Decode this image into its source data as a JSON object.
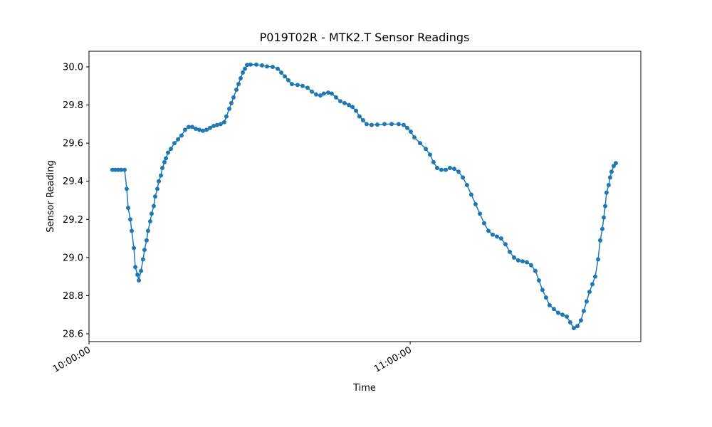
{
  "chart_data": {
    "type": "line",
    "title": "P019T02R - MTK2.T Sensor Readings",
    "xlabel": "Time",
    "ylabel": "Sensor Reading",
    "color": "#1f77b4",
    "x": [
      "10:04:23",
      "10:04:55",
      "10:05:27",
      "10:05:59",
      "10:06:39",
      "10:07:03",
      "10:07:19",
      "10:07:43",
      "10:07:59",
      "10:08:23",
      "10:08:39",
      "10:09:03",
      "10:09:19",
      "10:09:43",
      "10:10:06",
      "10:10:22",
      "10:10:46",
      "10:11:02",
      "10:11:26",
      "10:11:42",
      "10:12:06",
      "10:12:22",
      "10:12:46",
      "10:13:02",
      "10:13:26",
      "10:13:42",
      "10:14:06",
      "10:14:22",
      "10:14:46",
      "10:15:18",
      "10:15:58",
      "10:16:38",
      "10:17:17",
      "10:17:57",
      "10:18:37",
      "10:19:17",
      "10:19:57",
      "10:20:37",
      "10:21:17",
      "10:21:57",
      "10:22:37",
      "10:23:17",
      "10:23:56",
      "10:24:36",
      "10:25:16",
      "10:25:40",
      "10:26:12",
      "10:26:36",
      "10:27:00",
      "10:27:32",
      "10:27:56",
      "10:28:20",
      "10:28:44",
      "10:29:08",
      "10:29:32",
      "10:30:11",
      "10:31:15",
      "10:32:19",
      "10:33:15",
      "10:34:19",
      "10:35:15",
      "10:35:55",
      "10:36:35",
      "10:37:14",
      "10:37:54",
      "10:38:58",
      "10:39:54",
      "10:40:50",
      "10:41:38",
      "10:42:26",
      "10:43:14",
      "10:43:53",
      "10:44:41",
      "10:45:21",
      "10:46:09",
      "10:46:57",
      "10:47:45",
      "10:48:33",
      "10:49:13",
      "10:49:53",
      "10:50:32",
      "10:51:12",
      "10:51:52",
      "10:52:48",
      "10:53:52",
      "10:55:12",
      "10:56:32",
      "10:57:51",
      "10:58:47",
      "10:59:27",
      "11:00:07",
      "11:00:47",
      "11:01:51",
      "11:02:55",
      "11:03:42",
      "11:04:22",
      "11:05:02",
      "11:05:50",
      "11:06:38",
      "11:07:26",
      "11:08:14",
      "11:09:02",
      "11:09:50",
      "11:10:37",
      "11:11:25",
      "11:12:13",
      "11:13:01",
      "11:13:49",
      "11:14:37",
      "11:15:25",
      "11:16:13",
      "11:17:00",
      "11:17:48",
      "11:18:36",
      "11:19:24",
      "11:20:12",
      "11:21:00",
      "11:21:48",
      "11:22:36",
      "11:23:23",
      "11:24:03",
      "11:24:43",
      "11:25:23",
      "11:26:03",
      "11:26:51",
      "11:27:39",
      "11:28:27",
      "11:29:15",
      "11:29:54",
      "11:30:34",
      "11:31:14",
      "11:31:54",
      "11:32:26",
      "11:32:58",
      "11:33:30",
      "11:34:02",
      "11:34:34",
      "11:35:06",
      "11:35:30",
      "11:35:54",
      "11:36:10",
      "11:36:26",
      "11:36:41",
      "11:37:05",
      "11:37:21",
      "11:37:37",
      "11:38:01",
      "11:38:25"
    ],
    "values": [
      29.46,
      29.46,
      29.46,
      29.46,
      29.46,
      29.36,
      29.26,
      29.2,
      29.14,
      29.05,
      28.95,
      28.91,
      28.88,
      28.93,
      28.99,
      29.04,
      29.09,
      29.14,
      29.19,
      29.23,
      29.27,
      29.32,
      29.36,
      29.4,
      29.43,
      29.47,
      29.5,
      29.52,
      29.55,
      29.57,
      29.6,
      29.62,
      29.64,
      29.67,
      29.685,
      29.685,
      29.675,
      29.67,
      29.665,
      29.67,
      29.68,
      29.69,
      29.695,
      29.7,
      29.71,
      29.74,
      29.78,
      29.81,
      29.84,
      29.88,
      29.91,
      29.94,
      29.97,
      29.99,
      30.01,
      30.012,
      30.012,
      30.008,
      30.002,
      30.0,
      29.99,
      29.97,
      29.95,
      29.93,
      29.91,
      29.905,
      29.9,
      29.89,
      29.87,
      29.855,
      29.85,
      29.86,
      29.865,
      29.86,
      29.84,
      29.82,
      29.81,
      29.8,
      29.79,
      29.77,
      29.74,
      29.72,
      29.7,
      29.695,
      29.697,
      29.7,
      29.7,
      29.7,
      29.695,
      29.68,
      29.66,
      29.63,
      29.6,
      29.57,
      29.54,
      29.5,
      29.47,
      29.46,
      29.46,
      29.47,
      29.465,
      29.45,
      29.42,
      29.38,
      29.33,
      29.28,
      29.23,
      29.18,
      29.14,
      29.12,
      29.11,
      29.1,
      29.07,
      29.03,
      29.0,
      28.985,
      28.98,
      28.975,
      28.96,
      28.93,
      28.88,
      28.83,
      28.79,
      28.75,
      28.73,
      28.71,
      28.7,
      28.69,
      28.66,
      28.63,
      28.64,
      28.67,
      28.72,
      28.77,
      28.82,
      28.86,
      28.9,
      28.99,
      29.09,
      29.15,
      29.21,
      29.27,
      29.34,
      29.38,
      29.42,
      29.45,
      29.48,
      29.495
    ],
    "xlim": [
      "10:00:00",
      "11:43:05"
    ],
    "xticks": [
      "10:00:00",
      "11:00:00"
    ],
    "ylim": [
      28.559,
      30.082
    ],
    "yticks": [
      {
        "value": 28.6,
        "label": "28.6"
      },
      {
        "value": 28.8,
        "label": "28.8"
      },
      {
        "value": 29.0,
        "label": "29.0"
      },
      {
        "value": 29.2,
        "label": "29.2"
      },
      {
        "value": 29.4,
        "label": "29.4"
      },
      {
        "value": 29.6,
        "label": "29.6"
      },
      {
        "value": 29.8,
        "label": "29.8"
      },
      {
        "value": 30.0,
        "label": "30.0"
      }
    ]
  }
}
